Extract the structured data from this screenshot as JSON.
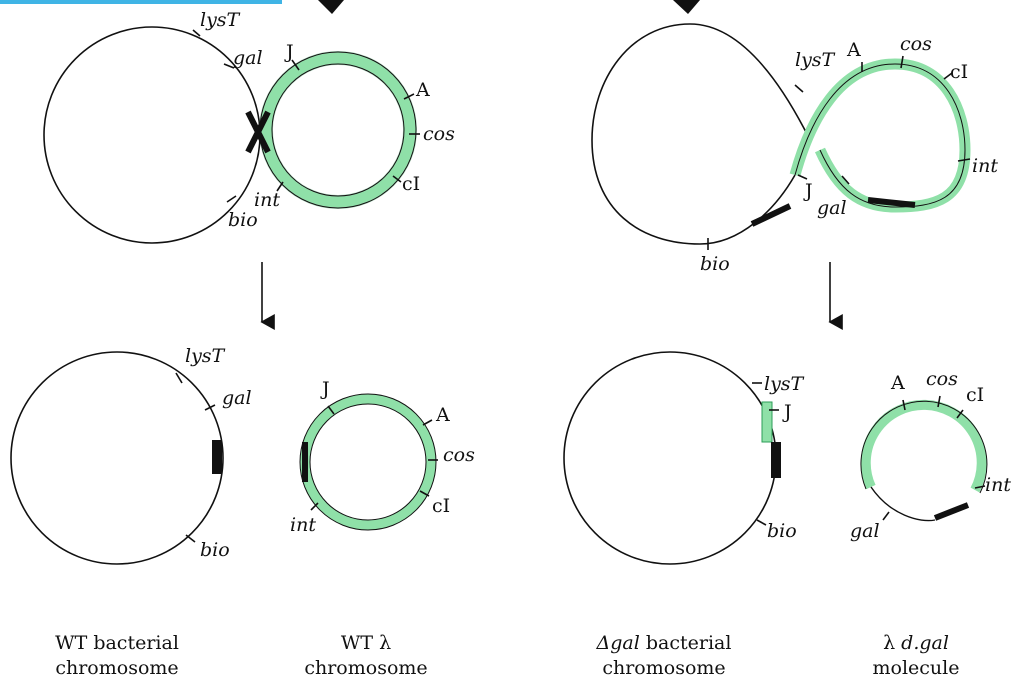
{
  "colors": {
    "lambda_dna": "#8fe0a8",
    "lambda_stroke": "#2e9e58",
    "att_site": "#111111",
    "accent_bar": "#3fb4e5"
  },
  "labels": {
    "lysT": "lysT",
    "gal": "gal",
    "bio": "bio",
    "int": "int",
    "cos": "cos",
    "J": "J",
    "A": "A",
    "cI": "cI"
  },
  "captions": [
    {
      "line1": "WT bacterial",
      "line2": "chromosome"
    },
    {
      "line1": "WT λ",
      "line2": "chromosome"
    },
    {
      "line1": "Δgal bacterial",
      "line2": "chromosome",
      "italic_part": "Δgal",
      "rest": " bacterial"
    },
    {
      "line1": "λ d.gal",
      "line2": "molecule",
      "italic_part": "d.gal",
      "prefix": "λ "
    }
  ]
}
